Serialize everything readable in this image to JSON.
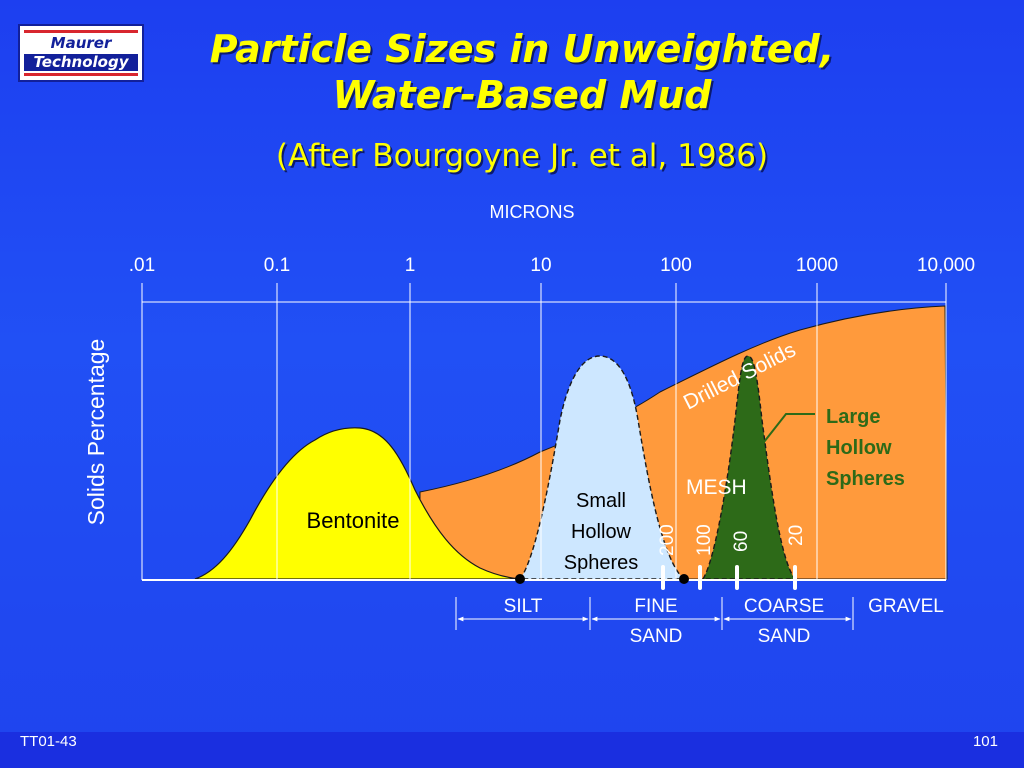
{
  "logo": {
    "line1": "Maurer",
    "line2": "Technology"
  },
  "title": {
    "line1": "Particle Sizes in Unweighted,",
    "line2": "Water-Based Mud"
  },
  "subtitle": "(After Bourgoyne Jr. et al, 1986)",
  "diagram": {
    "top_axis_label": "MICRONS",
    "micron_ticks": [
      ".01",
      "0.1",
      "1",
      "10",
      "100",
      "1000",
      "10,000"
    ],
    "y_axis_label": "Solids Percentage",
    "regions": {
      "bentonite": "Bentonite",
      "small_hollow": [
        "Small",
        "Hollow",
        "Spheres"
      ],
      "drilled_solids": "Drilled Solids",
      "large_hollow": [
        "Large",
        "Hollow",
        "Spheres"
      ]
    },
    "mesh_label": "MESH",
    "mesh_ticks": [
      "200",
      "100",
      "60",
      "20"
    ],
    "size_classes": {
      "silt": [
        "SILT"
      ],
      "fine_sand": [
        "FINE",
        "SAND"
      ],
      "coarse_sand": [
        "COARSE",
        "SAND"
      ],
      "gravel": [
        "GRAVEL"
      ]
    },
    "colors": {
      "drilled_solids": "#ff9a3c",
      "bentonite": "#ffff00",
      "small_hollow": "#cde7ff",
      "large_hollow": "#2d6a18",
      "large_hollow_label": "#2d6a18"
    }
  },
  "footer": {
    "left": "TT01-43",
    "right": "101"
  }
}
